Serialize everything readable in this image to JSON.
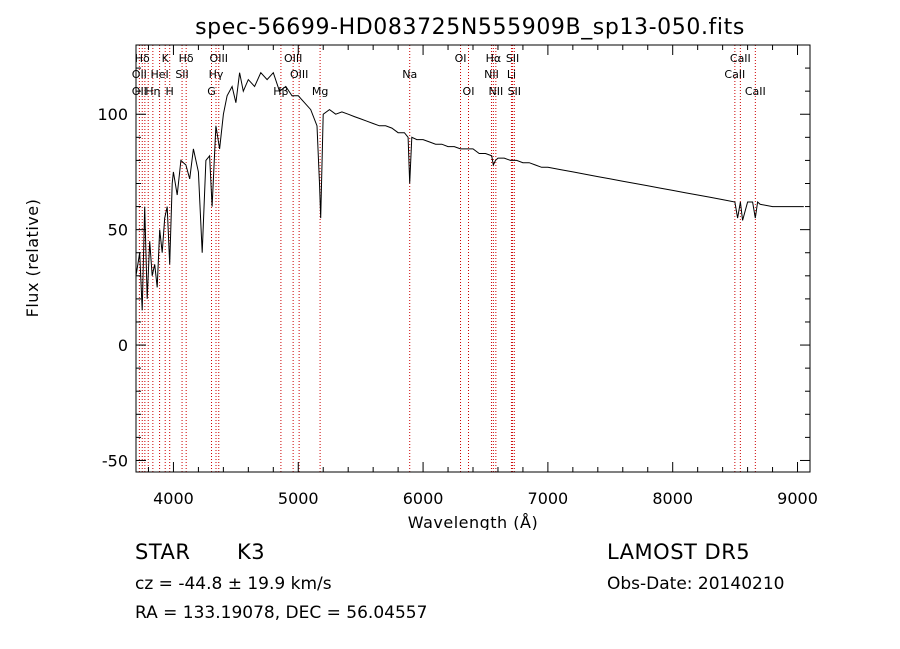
{
  "chart_data": {
    "type": "line",
    "title": "spec-56699-HD083725N555909B_sp13-050.fits",
    "xlabel": "Wavelength (Å)",
    "ylabel": "Flux (relative)",
    "xlim": [
      3700,
      9100
    ],
    "ylim": [
      -55,
      130
    ],
    "x_ticks": [
      4000,
      5000,
      6000,
      7000,
      8000,
      9000
    ],
    "y_ticks": [
      -50,
      0,
      50,
      100
    ],
    "grid": false,
    "series": [
      {
        "x": [
          3700,
          3730,
          3750,
          3770,
          3790,
          3810,
          3830,
          3850,
          3870,
          3890,
          3910,
          3930,
          3950,
          3970,
          3990,
          4000,
          4030,
          4060,
          4100,
          4130,
          4160,
          4200,
          4230,
          4260,
          4290,
          4310,
          4340,
          4370,
          4400,
          4430,
          4470,
          4500,
          4530,
          4560,
          4600,
          4650,
          4700,
          4750,
          4800,
          4850,
          4900,
          4950,
          5000,
          5050,
          5100,
          5150,
          5170,
          5180,
          5200,
          5250,
          5300,
          5350,
          5400,
          5450,
          5500,
          5550,
          5600,
          5650,
          5700,
          5750,
          5800,
          5850,
          5880,
          5893,
          5910,
          5950,
          6000,
          6050,
          6100,
          6150,
          6200,
          6250,
          6300,
          6350,
          6400,
          6450,
          6500,
          6550,
          6563,
          6580,
          6600,
          6650,
          6700,
          6750,
          6800,
          6850,
          6900,
          6950,
          7000,
          7100,
          7200,
          7300,
          7400,
          7500,
          7600,
          7700,
          7800,
          7900,
          8000,
          8100,
          8200,
          8300,
          8400,
          8498,
          8520,
          8542,
          8560,
          8600,
          8640,
          8662,
          8680,
          8700,
          8800,
          8900,
          9000,
          9050
        ],
        "y": [
          30,
          40,
          15,
          60,
          20,
          45,
          30,
          35,
          25,
          50,
          40,
          55,
          60,
          35,
          70,
          75,
          65,
          80,
          78,
          72,
          85,
          75,
          40,
          80,
          82,
          60,
          95,
          85,
          100,
          108,
          112,
          105,
          118,
          110,
          115,
          112,
          118,
          115,
          118,
          110,
          112,
          108,
          108,
          105,
          102,
          95,
          70,
          55,
          100,
          102,
          100,
          101,
          100,
          99,
          98,
          97,
          96,
          95,
          95,
          94,
          92,
          92,
          90,
          70,
          90,
          89,
          89,
          88,
          87,
          87,
          86,
          86,
          85,
          85,
          85,
          83,
          83,
          82,
          78,
          80,
          81,
          81,
          80,
          80,
          79,
          79,
          78,
          77,
          77,
          76,
          75,
          74,
          73,
          72,
          71,
          70,
          69,
          68,
          67,
          66,
          65,
          64,
          63,
          62,
          55,
          62,
          54,
          62,
          62,
          55,
          62,
          61,
          60,
          60,
          60,
          60
        ]
      }
    ],
    "annotations": [
      {
        "label": "Hδ",
        "x": 3750
      },
      {
        "label": "K",
        "x": 3934
      },
      {
        "label": "Hδ",
        "x": 4102
      },
      {
        "label": "OIII",
        "x": 4363
      },
      {
        "label": "OIII",
        "x": 4959
      },
      {
        "label": "OI",
        "x": 6300
      },
      {
        "label": "Hα",
        "x": 6563
      },
      {
        "label": "SII",
        "x": 6717
      },
      {
        "label": "CaII",
        "x": 8542
      },
      {
        "label": "OII",
        "x": 3727
      },
      {
        "label": "HeI",
        "x": 3889
      },
      {
        "label": "SII",
        "x": 4069
      },
      {
        "label": "Hγ",
        "x": 4341
      },
      {
        "label": "OIII",
        "x": 5007
      },
      {
        "label": "Na",
        "x": 5893
      },
      {
        "label": "NII",
        "x": 6548
      },
      {
        "label": "Li",
        "x": 6708
      },
      {
        "label": "CaII",
        "x": 8498
      },
      {
        "label": "OII",
        "x": 3727
      },
      {
        "label": "Hη",
        "x": 3835
      },
      {
        "label": "H",
        "x": 3970
      },
      {
        "label": "G",
        "x": 4305
      },
      {
        "label": "Hβ",
        "x": 4861
      },
      {
        "label": "Mg",
        "x": 5175
      },
      {
        "label": "OI",
        "x": 6364
      },
      {
        "label": "NII",
        "x": 6583
      },
      {
        "label": "SII",
        "x": 6731
      },
      {
        "label": "CaII",
        "x": 8662
      }
    ],
    "line_marker_wavelengths": [
      3727,
      3750,
      3771,
      3798,
      3835,
      3889,
      3934,
      3970,
      4069,
      4102,
      4305,
      4341,
      4363,
      4861,
      4959,
      5007,
      5175,
      5893,
      6300,
      6364,
      6548,
      6563,
      6583,
      6708,
      6717,
      6731,
      8498,
      8542,
      8662
    ]
  },
  "info": {
    "object_class": "STAR",
    "subclass": "K3",
    "survey": "LAMOST DR5",
    "redshift": "cz = -44.8 ± 19.9 km/s",
    "obs_date": "Obs-Date: 20140210",
    "coords": "RA = 133.19078, DEC =  56.04557"
  },
  "colors": {
    "spectrum": "#000000",
    "line_markers": "#cc0000",
    "axes": "#000000"
  }
}
